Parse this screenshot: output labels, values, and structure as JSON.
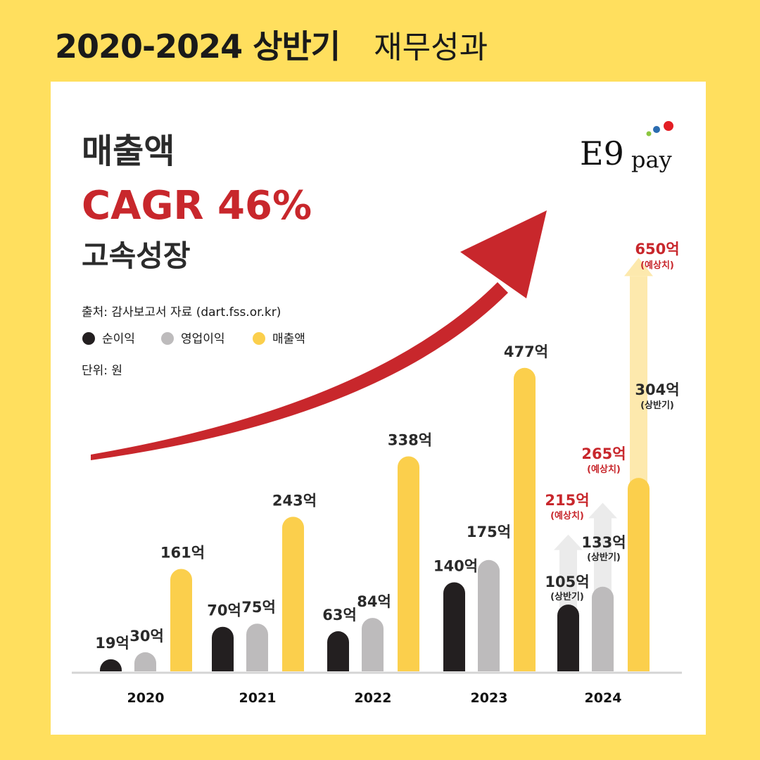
{
  "header": {
    "title_bold": "2020-2024 상반기",
    "title_light": "재무성과"
  },
  "headline": {
    "line1": "매출액",
    "line2": "CAGR 46%",
    "line3": "고속성장"
  },
  "info": {
    "source": "출처: 감사보고서 자료 (dart.fss.or.kr)",
    "unit": "단위: 원"
  },
  "logo": {
    "text_main": "E9",
    "text_sub": "pay"
  },
  "colors": {
    "page_bg": "#FFDF5E",
    "net_income": "#231F20",
    "operating_income": "#BDBBBC",
    "revenue": "#FBCF4C",
    "accent_red": "#C8272C",
    "logo_red": "#E31E24",
    "logo_blue": "#2B6CB0",
    "logo_green": "#8CC63F"
  },
  "chart_data": {
    "type": "bar",
    "categories": [
      "2020",
      "2021",
      "2022",
      "2023",
      "2024"
    ],
    "series": [
      {
        "name": "순이익",
        "values": [
          19,
          70,
          63,
          140,
          105
        ]
      },
      {
        "name": "영업이익",
        "values": [
          30,
          75,
          84,
          175,
          133
        ]
      },
      {
        "name": "매출액",
        "values": [
          161,
          243,
          338,
          477,
          304
        ]
      }
    ],
    "labels": [
      [
        "19억",
        "30억",
        "161억"
      ],
      [
        "70억",
        "75억",
        "243억"
      ],
      [
        "63억",
        "84억",
        "338억"
      ],
      [
        "140억",
        "175억",
        "477억"
      ],
      [
        "105억",
        "133억",
        "304억"
      ]
    ],
    "sub_labels_2024": [
      "(상반기)",
      "(상반기)",
      "(상반기)"
    ],
    "forecast_2024": [
      {
        "series": "순이익",
        "value": 215,
        "label": "215억",
        "note": "(예상치)"
      },
      {
        "series": "영업이익",
        "value": 265,
        "label": "265억",
        "note": "(예상치)"
      },
      {
        "series": "매출액",
        "value": 650,
        "label": "650억",
        "note": "(예상치)"
      }
    ],
    "legend_position": "top-left",
    "grid": false,
    "ylim": [
      0,
      500
    ]
  }
}
